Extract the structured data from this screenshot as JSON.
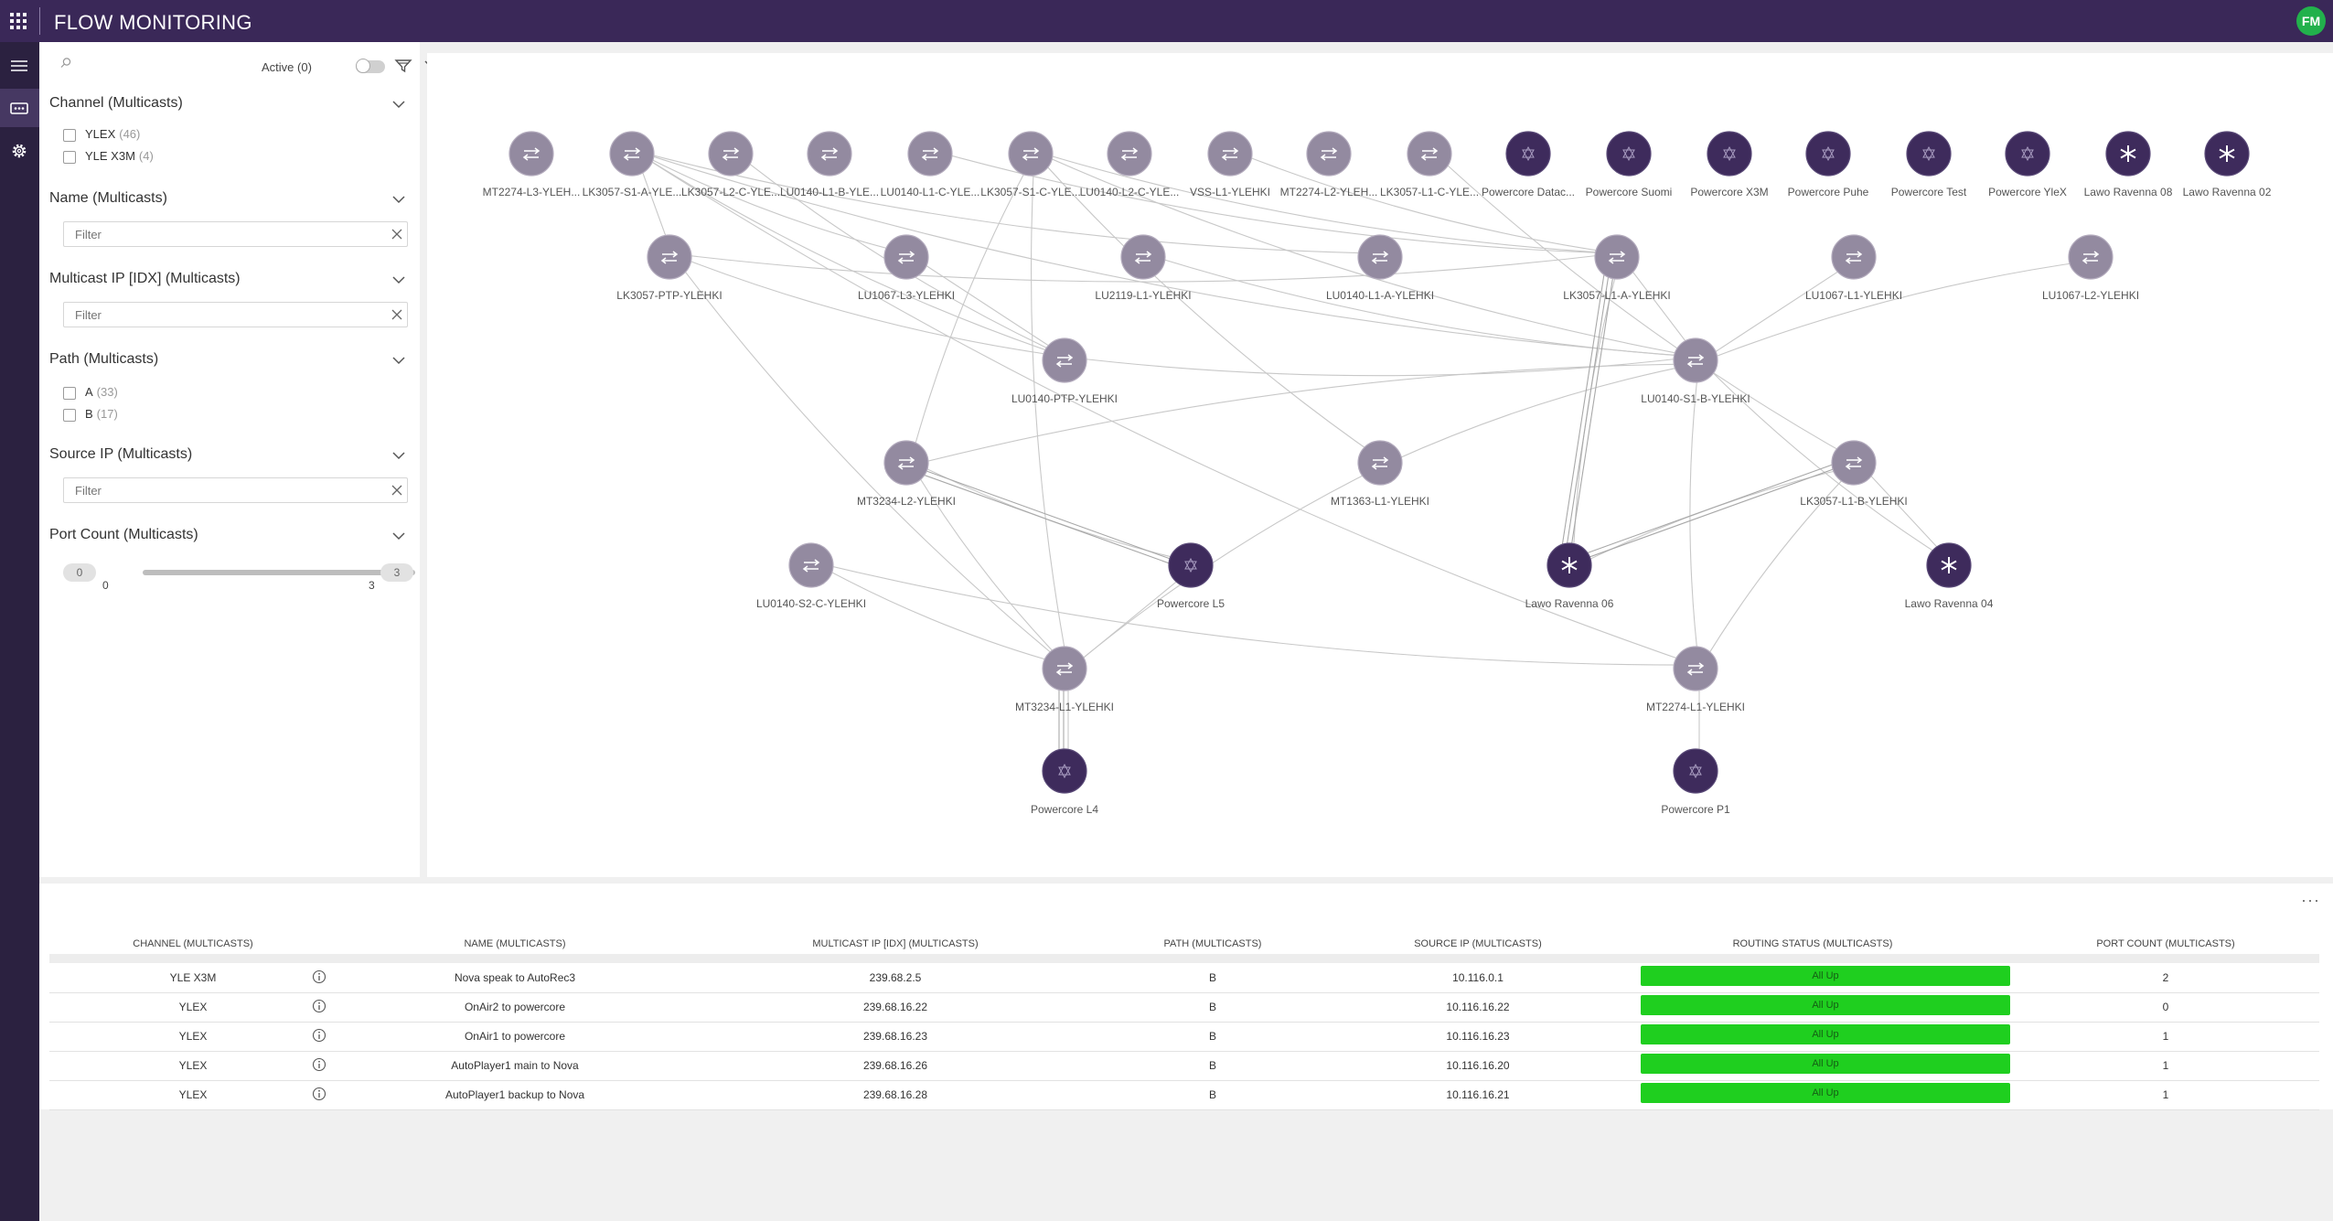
{
  "app": {
    "title": "FLOW MONITORING",
    "user_initials": "FM"
  },
  "filter_panel": {
    "search_placeholder": "",
    "active_label": "Active (0)",
    "sections": {
      "channel": {
        "title": "Channel (Multicasts)",
        "options": [
          {
            "label": "YLEX",
            "count": "(46)"
          },
          {
            "label": "YLE X3M",
            "count": "(4)"
          }
        ]
      },
      "name": {
        "title": "Name (Multicasts)",
        "placeholder": "Filter"
      },
      "multicast_ip": {
        "title": "Multicast IP [IDX] (Multicasts)",
        "placeholder": "Filter"
      },
      "path": {
        "title": "Path (Multicasts)",
        "options": [
          {
            "label": "A",
            "count": "(33)"
          },
          {
            "label": "B",
            "count": "(17)"
          }
        ]
      },
      "source_ip": {
        "title": "Source IP (Multicasts)",
        "placeholder": "Filter"
      },
      "port_count": {
        "title": "Port Count (Multicasts)",
        "min_badge": "0",
        "max_badge": "3",
        "min_tick": "0",
        "max_tick": "3"
      }
    }
  },
  "graph": {
    "colors": {
      "switch": "#938aa0",
      "endpoint": "#3e2b5c",
      "edge": "#c8c8c8"
    },
    "nodes": [
      {
        "id": "n1",
        "label": "MT2274-L3-YLEH...",
        "kind": "switch"
      },
      {
        "id": "n2",
        "label": "LK3057-S1-A-YLE...",
        "kind": "switch"
      },
      {
        "id": "n3",
        "label": "LK3057-L2-C-YLE...",
        "kind": "switch"
      },
      {
        "id": "n4",
        "label": "LU0140-L1-B-YLE...",
        "kind": "switch"
      },
      {
        "id": "n5",
        "label": "LU0140-L1-C-YLE...",
        "kind": "switch"
      },
      {
        "id": "n6",
        "label": "LK3057-S1-C-YLE...",
        "kind": "switch"
      },
      {
        "id": "n7",
        "label": "LU0140-L2-C-YLE...",
        "kind": "switch"
      },
      {
        "id": "n8",
        "label": "VSS-L1-YLEHKI",
        "kind": "switch"
      },
      {
        "id": "n9",
        "label": "MT2274-L2-YLEH...",
        "kind": "switch"
      },
      {
        "id": "n10",
        "label": "LK3057-L1-C-YLE...",
        "kind": "switch"
      },
      {
        "id": "n11",
        "label": "Powercore Datac...",
        "kind": "powercore"
      },
      {
        "id": "n12",
        "label": "Powercore Suomi",
        "kind": "powercore"
      },
      {
        "id": "n13",
        "label": "Powercore X3M",
        "kind": "powercore"
      },
      {
        "id": "n14",
        "label": "Powercore Puhe",
        "kind": "powercore"
      },
      {
        "id": "n15",
        "label": "Powercore Test",
        "kind": "powercore"
      },
      {
        "id": "n16",
        "label": "Powercore YleX",
        "kind": "powercore"
      },
      {
        "id": "n17",
        "label": "Lawo Ravenna 08",
        "kind": "lawo"
      },
      {
        "id": "n18",
        "label": "Lawo Ravenna 02",
        "kind": "lawo"
      },
      {
        "id": "n19",
        "label": "LK3057-PTP-YLEHKI",
        "kind": "switch"
      },
      {
        "id": "n20",
        "label": "LU1067-L3-YLEHKI",
        "kind": "switch"
      },
      {
        "id": "n21",
        "label": "LU2119-L1-YLEHKI",
        "kind": "switch"
      },
      {
        "id": "n22",
        "label": "LU0140-L1-A-YLEHKI",
        "kind": "switch"
      },
      {
        "id": "n23",
        "label": "LK3057-L1-A-YLEHKI",
        "kind": "switch"
      },
      {
        "id": "n24",
        "label": "LU1067-L1-YLEHKI",
        "kind": "switch"
      },
      {
        "id": "n25",
        "label": "LU1067-L2-YLEHKI",
        "kind": "switch"
      },
      {
        "id": "n26",
        "label": "LU0140-PTP-YLEHKI",
        "kind": "switch"
      },
      {
        "id": "n27",
        "label": "LU0140-S1-B-YLEHKI",
        "kind": "switch"
      },
      {
        "id": "n28",
        "label": "MT3234-L2-YLEHKI",
        "kind": "switch"
      },
      {
        "id": "n29",
        "label": "MT1363-L1-YLEHKI",
        "kind": "switch"
      },
      {
        "id": "n30",
        "label": "LK3057-L1-B-YLEHKI",
        "kind": "switch"
      },
      {
        "id": "n31",
        "label": "LU0140-S2-C-YLEHKI",
        "kind": "switch"
      },
      {
        "id": "n32",
        "label": "Powercore L5",
        "kind": "powercore"
      },
      {
        "id": "n33",
        "label": "Lawo Ravenna 06",
        "kind": "lawo"
      },
      {
        "id": "n34",
        "label": "Lawo Ravenna 04",
        "kind": "lawo"
      },
      {
        "id": "n35",
        "label": "MT3234-L1-YLEHKI",
        "kind": "switch"
      },
      {
        "id": "n36",
        "label": "MT2274-L1-YLEHKI",
        "kind": "switch"
      },
      {
        "id": "n37",
        "label": "Powercore L4",
        "kind": "powercore"
      },
      {
        "id": "n38",
        "label": "Powercore P1",
        "kind": "powercore"
      }
    ],
    "edges": [
      [
        "n2",
        "n19"
      ],
      [
        "n2",
        "n26"
      ],
      [
        "n2",
        "n27"
      ],
      [
        "n2",
        "n22"
      ],
      [
        "n2",
        "n36"
      ],
      [
        "n2",
        "n20"
      ],
      [
        "n6",
        "n28"
      ],
      [
        "n6",
        "n35"
      ],
      [
        "n6",
        "n27"
      ],
      [
        "n6",
        "n29"
      ],
      [
        "n6",
        "n23"
      ],
      [
        "n3",
        "n26"
      ],
      [
        "n5",
        "n23"
      ],
      [
        "n8",
        "n23"
      ],
      [
        "n10",
        "n30"
      ],
      [
        "n19",
        "n26"
      ],
      [
        "n19",
        "n23"
      ],
      [
        "n19",
        "n35"
      ],
      [
        "n20",
        "n26"
      ],
      [
        "n21",
        "n27"
      ],
      [
        "n23",
        "n27"
      ],
      [
        "n24",
        "n27"
      ],
      [
        "n25",
        "n27"
      ],
      [
        "n26",
        "n27"
      ],
      [
        "n27",
        "n34"
      ],
      [
        "n27",
        "n28"
      ],
      [
        "n27",
        "n29"
      ],
      [
        "n27",
        "n36"
      ],
      [
        "n28",
        "n32"
      ],
      [
        "n28",
        "n32"
      ],
      [
        "n28",
        "n32"
      ],
      [
        "n28",
        "n35"
      ],
      [
        "n29",
        "n35"
      ],
      [
        "n31",
        "n35"
      ],
      [
        "n31",
        "n36"
      ],
      [
        "n32",
        "n35"
      ],
      [
        "n23",
        "n33"
      ],
      [
        "n23",
        "n33"
      ],
      [
        "n23",
        "n33"
      ],
      [
        "n23",
        "n33"
      ],
      [
        "n30",
        "n33"
      ],
      [
        "n30",
        "n33"
      ],
      [
        "n30",
        "n33"
      ],
      [
        "n30",
        "n34"
      ],
      [
        "n30",
        "n36"
      ],
      [
        "n35",
        "n37"
      ],
      [
        "n35",
        "n37"
      ],
      [
        "n35",
        "n37"
      ],
      [
        "n36",
        "n38"
      ]
    ]
  },
  "table": {
    "headers": [
      "CHANNEL (MULTICASTS)",
      "NAME (MULTICASTS)",
      "MULTICAST IP [IDX] (MULTICASTS)",
      "PATH (MULTICASTS)",
      "SOURCE IP (MULTICASTS)",
      "ROUTING STATUS (MULTICASTS)",
      "PORT COUNT (MULTICASTS)"
    ],
    "rows": [
      {
        "channel": "YLE X3M",
        "name": "Nova speak to AutoRec3",
        "ip": "239.68.2.5",
        "path": "B",
        "source": "10.116.0.1",
        "status": "All Up",
        "ports": "2"
      },
      {
        "channel": "YLEX",
        "name": "OnAir2 to powercore",
        "ip": "239.68.16.22",
        "path": "B",
        "source": "10.116.16.22",
        "status": "All Up",
        "ports": "0"
      },
      {
        "channel": "YLEX",
        "name": "OnAir1 to powercore",
        "ip": "239.68.16.23",
        "path": "B",
        "source": "10.116.16.23",
        "status": "All Up",
        "ports": "1"
      },
      {
        "channel": "YLEX",
        "name": "AutoPlayer1 main to Nova",
        "ip": "239.68.16.26",
        "path": "B",
        "source": "10.116.16.20",
        "status": "All Up",
        "ports": "1"
      },
      {
        "channel": "YLEX",
        "name": "AutoPlayer1 backup to Nova",
        "ip": "239.68.16.28",
        "path": "B",
        "source": "10.116.16.21",
        "status": "All Up",
        "ports": "1"
      }
    ],
    "status_color": "#1fcf1f"
  }
}
